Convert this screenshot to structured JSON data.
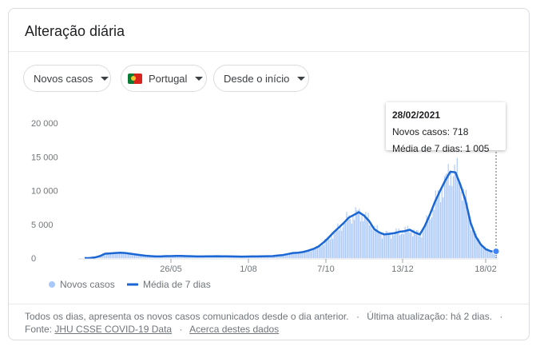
{
  "card": {
    "title": "Alteração diária"
  },
  "filters": [
    {
      "label": "Novos casos"
    },
    {
      "label": "Portugal",
      "flag": "portugal-flag"
    },
    {
      "label": "Desde o início"
    }
  ],
  "tooltip": {
    "date": "28/02/2021",
    "line1": "Novos casos: 718",
    "line2": "Média de 7 dias: 1 005"
  },
  "footer": {
    "line1_text": "Todos os dias, apresenta os novos casos comunicados desde o dia anterior.",
    "line1_update": "Última atualização: há 2 dias.",
    "source_prefix": "Fonte:",
    "source_link": "JHU CSSE COVID-19 Data",
    "about_link": "Acerca destes dados"
  },
  "colors": {
    "bars": "#a8c7fa",
    "line": "#1a66d2",
    "text": "#70757a"
  },
  "chart_data": {
    "type": "bar",
    "title": "",
    "xlabel": "",
    "ylabel": "",
    "ylim": [
      0,
      20000
    ],
    "y_ticks": [
      "0",
      "5 000",
      "10 000",
      "15 000",
      "20 000"
    ],
    "x_tick_labels": [
      "26/05",
      "1/08",
      "7/10",
      "13/12",
      "18/02"
    ],
    "legend": [
      "Novos casos",
      "Média de 7 dias"
    ],
    "x_start": "2020-03-02",
    "series": [
      {
        "name": "Novos casos",
        "type": "bar",
        "values_weekly": [
          0,
          20,
          100,
          300,
          650,
          700,
          750,
          800,
          750,
          650,
          550,
          450,
          350,
          300,
          250,
          250,
          300,
          300,
          320,
          330,
          300,
          280,
          250,
          250,
          260,
          270,
          280,
          270,
          260,
          250,
          230,
          220,
          230,
          250,
          250,
          260,
          280,
          300,
          380,
          450,
          600,
          750,
          800,
          900,
          1100,
          1350,
          1700,
          2300,
          3000,
          3800,
          4500,
          5200,
          6000,
          6400,
          6800,
          6300,
          5500,
          4300,
          3800,
          3500,
          3600,
          3700,
          3900,
          4000,
          4200,
          3800,
          3500,
          4800,
          6500,
          8400,
          10000,
          11500,
          12800,
          12700,
          10800,
          8500,
          5200,
          3200,
          2000,
          1300,
          1005,
          718
        ]
      },
      {
        "name": "Média de 7 dias",
        "type": "line",
        "values_weekly": [
          0,
          20,
          100,
          300,
          650,
          700,
          750,
          800,
          750,
          650,
          550,
          450,
          350,
          300,
          250,
          250,
          300,
          300,
          320,
          330,
          300,
          280,
          250,
          250,
          260,
          270,
          280,
          270,
          260,
          250,
          230,
          220,
          230,
          250,
          250,
          260,
          280,
          300,
          380,
          450,
          600,
          750,
          800,
          900,
          1100,
          1350,
          1700,
          2300,
          3000,
          3800,
          4500,
          5200,
          6000,
          6400,
          6800,
          6300,
          5500,
          4300,
          3800,
          3500,
          3600,
          3700,
          3900,
          4000,
          4200,
          3800,
          3500,
          4800,
          6500,
          8400,
          10000,
          11500,
          12800,
          12700,
          10800,
          8500,
          5200,
          3200,
          2000,
          1300,
          1005,
          1005
        ]
      }
    ],
    "highlight": {
      "date": "28/02/2021",
      "cases": 718,
      "avg7": 1005
    }
  }
}
